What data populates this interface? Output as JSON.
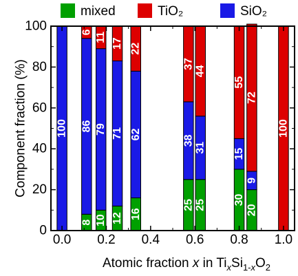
{
  "chart_data": {
    "type": "bar",
    "stacked": true,
    "title": "",
    "xlabel_parts": [
      "Atomic fraction ",
      "x",
      " in Ti",
      "x",
      "Si",
      "1-",
      "x",
      "O",
      "2"
    ],
    "ylabel": "Component fraction (%)",
    "xlim": [
      -0.05,
      1.05
    ],
    "ylim": [
      0,
      100
    ],
    "x_ticks": [
      0.0,
      0.2,
      0.4,
      0.6,
      0.8,
      1.0
    ],
    "x_tick_labels": [
      "0.0",
      "0.2",
      "0.4",
      "0.6",
      "0.8",
      "1.0"
    ],
    "y_ticks": [
      0,
      20,
      40,
      60,
      80,
      100
    ],
    "y_tick_labels": [
      "0",
      "20",
      "40",
      "60",
      "80",
      "100"
    ],
    "bar_width": 0.045,
    "grid": false,
    "legend_position": "top",
    "colors": {
      "mixed": "#00a000",
      "TiO2": "#dd0000",
      "SiO2": "#1a1ae6",
      "label": "#ffffff",
      "axis": "#000000"
    },
    "series": [
      {
        "name": "mixed",
        "legend_label": "mixed",
        "color": "#00a000"
      },
      {
        "name": "SiO2",
        "legend_label": "SiO₂",
        "color": "#1a1ae6"
      },
      {
        "name": "TiO2",
        "legend_label": "TiO₂",
        "color": "#dd0000"
      }
    ],
    "legend_order": [
      "mixed",
      "TiO2",
      "SiO2"
    ],
    "bars": [
      {
        "x": 0.0,
        "mixed": 0,
        "SiO2": 100,
        "TiO2": 0,
        "labels": {
          "mixed": "",
          "SiO2": "100",
          "TiO2": ""
        }
      },
      {
        "x": 0.111,
        "mixed": 8,
        "SiO2": 86,
        "TiO2": 6,
        "labels": {
          "mixed": "8",
          "SiO2": "86",
          "TiO2": "6"
        }
      },
      {
        "x": 0.176,
        "mixed": 10,
        "SiO2": 79,
        "TiO2": 11,
        "labels": {
          "mixed": "10",
          "SiO2": "79",
          "TiO2": "11"
        }
      },
      {
        "x": 0.25,
        "mixed": 12,
        "SiO2": 71,
        "TiO2": 17,
        "labels": {
          "mixed": "12",
          "SiO2": "71",
          "TiO2": "17"
        }
      },
      {
        "x": 0.333,
        "mixed": 16,
        "SiO2": 62,
        "TiO2": 22,
        "labels": {
          "mixed": "16",
          "SiO2": "62",
          "TiO2": "22"
        }
      },
      {
        "x": 0.571,
        "mixed": 25,
        "SiO2": 38,
        "TiO2": 37,
        "labels": {
          "mixed": "25",
          "SiO2": "38",
          "TiO2": "37"
        }
      },
      {
        "x": 0.625,
        "mixed": 25,
        "SiO2": 31,
        "TiO2": 44,
        "labels": {
          "mixed": "25",
          "SiO2": "31",
          "TiO2": "44"
        }
      },
      {
        "x": 0.8,
        "mixed": 30,
        "SiO2": 15,
        "TiO2": 55,
        "labels": {
          "mixed": "30",
          "SiO2": "15",
          "TiO2": "55"
        }
      },
      {
        "x": 0.857,
        "mixed": 20,
        "SiO2": 9,
        "TiO2": 72,
        "labels": {
          "mixed": "20",
          "SiO2": "9",
          "TiO2": "72"
        }
      },
      {
        "x": 1.0,
        "mixed": 0,
        "SiO2": 0,
        "TiO2": 100,
        "labels": {
          "mixed": "",
          "SiO2": "",
          "TiO2": "100"
        }
      }
    ]
  }
}
